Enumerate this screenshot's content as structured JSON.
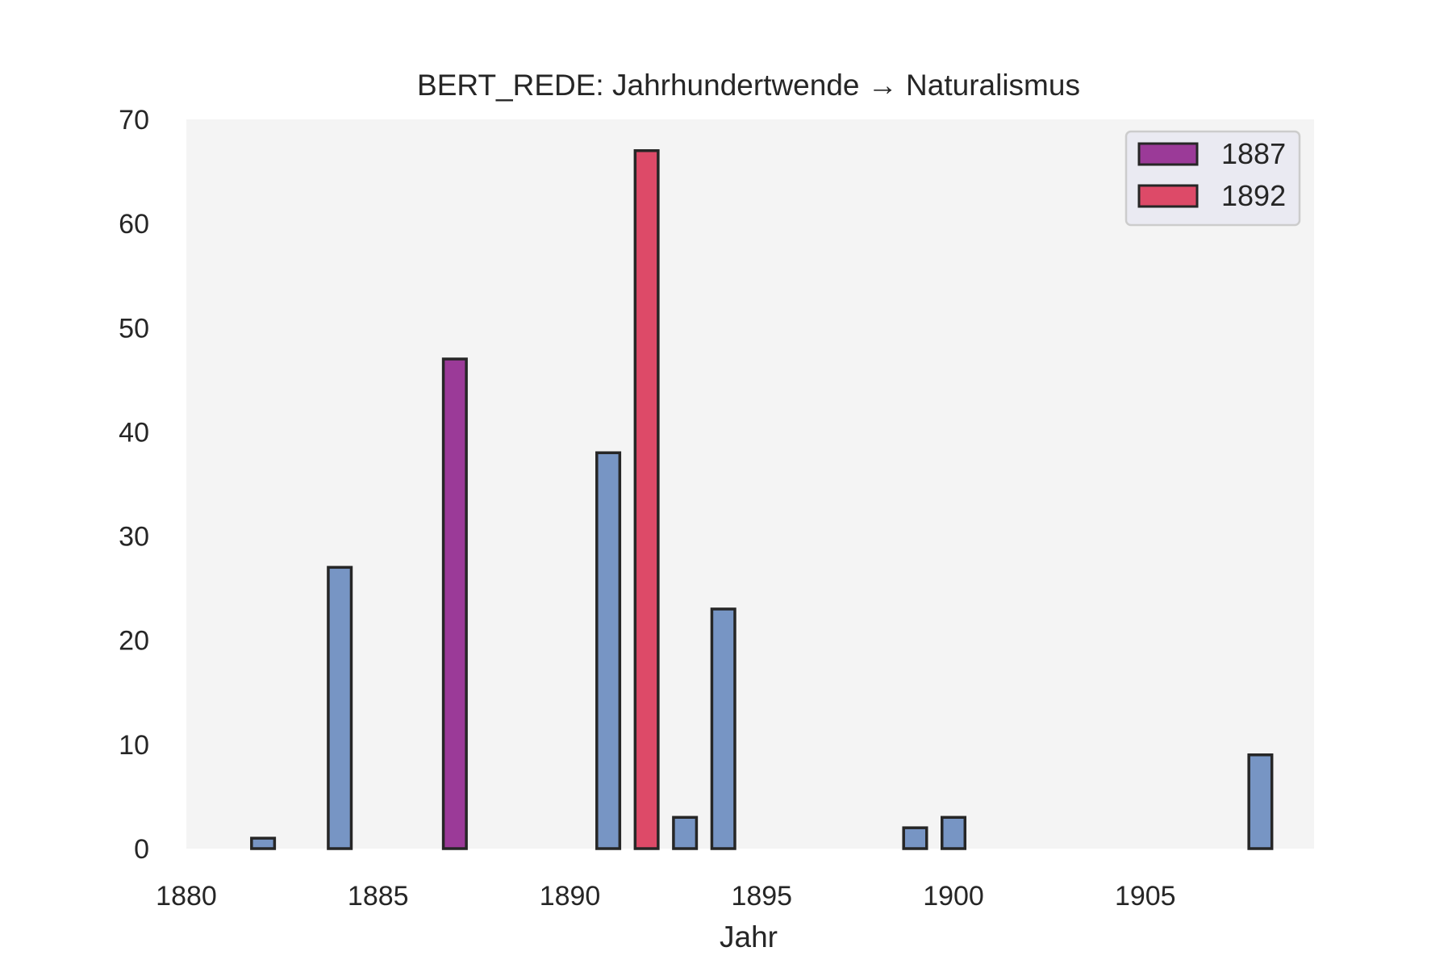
{
  "chart_data": {
    "type": "bar",
    "title": "BERT_REDE: Jahrhundertwende → Naturalismus",
    "xlabel": "Jahr",
    "ylabel": "",
    "xlim": [
      1880,
      1909.4
    ],
    "ylim": [
      0,
      70
    ],
    "xticks": [
      1880,
      1885,
      1890,
      1895,
      1900,
      1905
    ],
    "yticks": [
      0,
      10,
      20,
      30,
      40,
      50,
      60,
      70
    ],
    "grid": false,
    "legend_position": "top-right",
    "bar_width_years": 0.6,
    "colors": {
      "default": "#7795c4",
      "1887": "#9b3a98",
      "1892": "#dd4a68",
      "edge": "#262626",
      "plot_background": "#f4f4f4",
      "legend_background": "#eaeaf2"
    },
    "series": [
      {
        "name": "1887",
        "x": [
          1887
        ],
        "values": [
          47
        ],
        "color": "#9b3a98"
      },
      {
        "name": "1892",
        "x": [
          1892
        ],
        "values": [
          67
        ],
        "color": "#dd4a68"
      }
    ],
    "bars": [
      {
        "x": 1882,
        "value": 1,
        "series": ""
      },
      {
        "x": 1884,
        "value": 27,
        "series": ""
      },
      {
        "x": 1887,
        "value": 47,
        "series": "1887"
      },
      {
        "x": 1891,
        "value": 38,
        "series": ""
      },
      {
        "x": 1892,
        "value": 67,
        "series": "1892"
      },
      {
        "x": 1893,
        "value": 3,
        "series": ""
      },
      {
        "x": 1894,
        "value": 23,
        "series": ""
      },
      {
        "x": 1899,
        "value": 2,
        "series": ""
      },
      {
        "x": 1900,
        "value": 3,
        "series": ""
      },
      {
        "x": 1908,
        "value": 9,
        "series": ""
      }
    ]
  }
}
